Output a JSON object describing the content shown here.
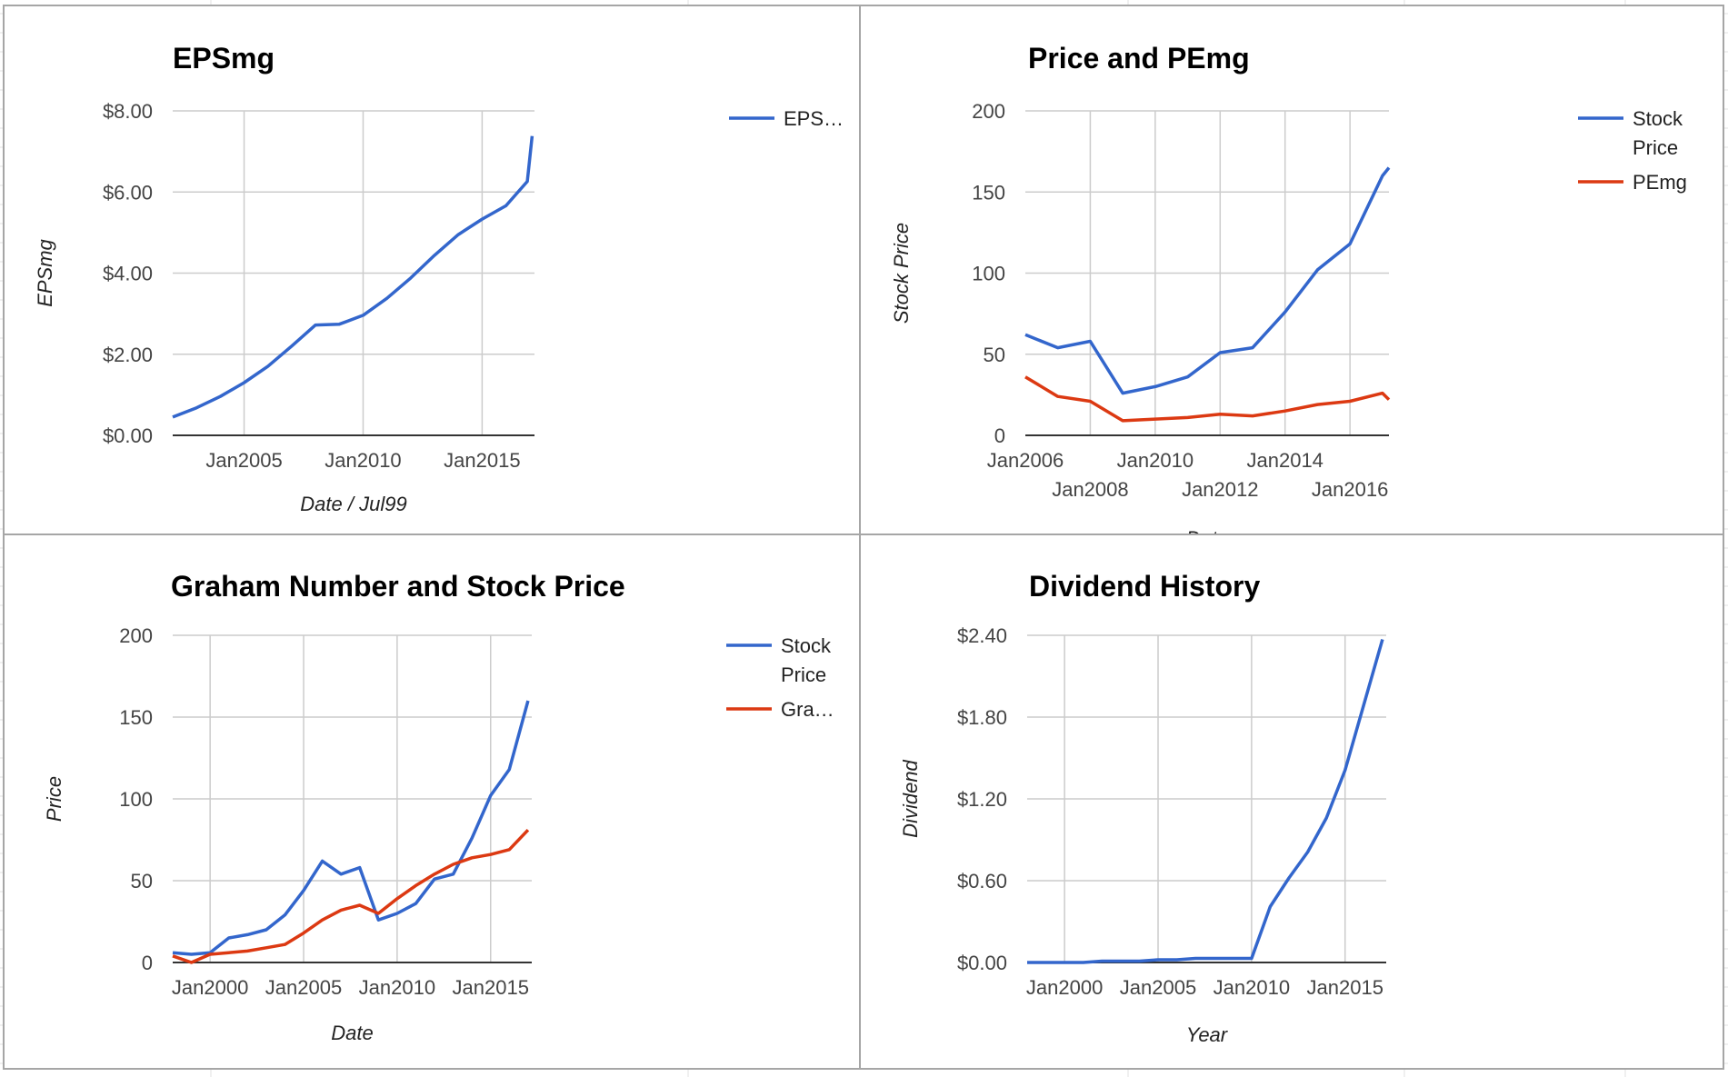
{
  "colors": {
    "blue": "#3366cc",
    "red": "#dc3912",
    "grid": "#cccccc",
    "baseline": "#333333",
    "panel_border": "#a6a6a6",
    "sheet_grid": "#e2e2e2"
  },
  "chart_data": [
    {
      "type": "line",
      "title": "EPSmg",
      "xlabel": "Date / Jul99",
      "ylabel": "EPSmg",
      "xlim": [
        2002.0,
        2017.2
      ],
      "ylim": [
        0,
        8
      ],
      "x_ticks": [
        {
          "v": 2005,
          "label": "Jan2005"
        },
        {
          "v": 2010,
          "label": "Jan2010"
        },
        {
          "v": 2015,
          "label": "Jan2015"
        }
      ],
      "y_ticks": [
        {
          "v": 0,
          "label": "$0.00"
        },
        {
          "v": 2,
          "label": "$2.00"
        },
        {
          "v": 4,
          "label": "$4.00"
        },
        {
          "v": 6,
          "label": "$6.00"
        },
        {
          "v": 8,
          "label": "$8.00"
        }
      ],
      "legend": "right",
      "series": [
        {
          "name": "EPS…",
          "color": "#3366cc",
          "x": [
            2002.0,
            2003.0,
            2004.0,
            2005.0,
            2006.0,
            2007.0,
            2008.0,
            2009.0,
            2010.0,
            2011.0,
            2012.0,
            2013.0,
            2014.0,
            2015.0,
            2016.0,
            2016.9,
            2017.1
          ],
          "values": [
            0.45,
            0.68,
            0.96,
            1.3,
            1.7,
            2.2,
            2.72,
            2.74,
            2.96,
            3.38,
            3.88,
            4.44,
            4.95,
            5.33,
            5.66,
            6.26,
            7.38
          ]
        }
      ]
    },
    {
      "type": "line",
      "title": "Price and PEmg",
      "xlabel": "Date",
      "ylabel": "Stock Price",
      "xlim": [
        2006.0,
        2017.2
      ],
      "ylim": [
        0,
        200
      ],
      "x_ticks": [
        {
          "v": 2006,
          "label": "Jan2006",
          "row": 0
        },
        {
          "v": 2008,
          "label": "Jan2008",
          "row": 1
        },
        {
          "v": 2010,
          "label": "Jan2010",
          "row": 0
        },
        {
          "v": 2012,
          "label": "Jan2012",
          "row": 1
        },
        {
          "v": 2014,
          "label": "Jan2014",
          "row": 0
        },
        {
          "v": 2016,
          "label": "Jan2016",
          "row": 1
        }
      ],
      "y_ticks": [
        {
          "v": 0,
          "label": "0"
        },
        {
          "v": 50,
          "label": "50"
        },
        {
          "v": 100,
          "label": "100"
        },
        {
          "v": 150,
          "label": "150"
        },
        {
          "v": 200,
          "label": "200"
        }
      ],
      "legend": "right",
      "series": [
        {
          "name": "Stock Price",
          "color": "#3366cc",
          "x": [
            2006.0,
            2007.0,
            2008.0,
            2009.0,
            2010.0,
            2011.0,
            2012.0,
            2013.0,
            2014.0,
            2015.0,
            2016.0,
            2017.0,
            2017.2
          ],
          "values": [
            62,
            54,
            58,
            26,
            30,
            36,
            51,
            54,
            76,
            102,
            118,
            160,
            165
          ]
        },
        {
          "name": "PEmg",
          "color": "#dc3912",
          "x": [
            2006.0,
            2007.0,
            2008.0,
            2009.0,
            2010.0,
            2011.0,
            2012.0,
            2013.0,
            2014.0,
            2015.0,
            2016.0,
            2017.0,
            2017.2
          ],
          "values": [
            36,
            24,
            21,
            9,
            10,
            11,
            13,
            12,
            15,
            19,
            21,
            26,
            22
          ]
        }
      ]
    },
    {
      "type": "line",
      "title": "Graham Number and Stock Price",
      "xlabel": "Date",
      "ylabel": "Price",
      "xlim": [
        1998.0,
        2017.2
      ],
      "ylim": [
        0,
        200
      ],
      "x_ticks": [
        {
          "v": 2000,
          "label": "Jan2000"
        },
        {
          "v": 2005,
          "label": "Jan2005"
        },
        {
          "v": 2010,
          "label": "Jan2010"
        },
        {
          "v": 2015,
          "label": "Jan2015"
        }
      ],
      "y_ticks": [
        {
          "v": 0,
          "label": "0"
        },
        {
          "v": 50,
          "label": "50"
        },
        {
          "v": 100,
          "label": "100"
        },
        {
          "v": 150,
          "label": "150"
        },
        {
          "v": 200,
          "label": "200"
        }
      ],
      "legend": "right",
      "series": [
        {
          "name": "Stock Price",
          "color": "#3366cc",
          "x": [
            1998,
            1999,
            2000,
            2001,
            2002,
            2003,
            2004,
            2005,
            2006,
            2007,
            2008,
            2009,
            2010,
            2011,
            2012,
            2013,
            2014,
            2015,
            2016,
            2017
          ],
          "values": [
            6,
            5,
            6,
            15,
            17,
            20,
            29,
            44,
            62,
            54,
            58,
            26,
            30,
            36,
            51,
            54,
            76,
            102,
            118,
            160
          ]
        },
        {
          "name": "Gra…",
          "color": "#dc3912",
          "x": [
            1998,
            1999,
            2000,
            2001,
            2002,
            2003,
            2004,
            2005,
            2006,
            2007,
            2008,
            2009,
            2010,
            2011,
            2012,
            2013,
            2014,
            2015,
            2016,
            2017
          ],
          "values": [
            4,
            0,
            5,
            6,
            7,
            9,
            11,
            18,
            26,
            32,
            35,
            30,
            39,
            47,
            54,
            60,
            64,
            66,
            69,
            81
          ]
        }
      ]
    },
    {
      "type": "line",
      "title": "Dividend History",
      "xlabel": "Year",
      "ylabel": "Dividend",
      "xlim": [
        1998.0,
        2017.2
      ],
      "ylim": [
        0,
        2.4
      ],
      "x_ticks": [
        {
          "v": 2000,
          "label": "Jan2000"
        },
        {
          "v": 2005,
          "label": "Jan2005"
        },
        {
          "v": 2010,
          "label": "Jan2010"
        },
        {
          "v": 2015,
          "label": "Jan2015"
        }
      ],
      "y_ticks": [
        {
          "v": 0,
          "label": "$0.00"
        },
        {
          "v": 0.6,
          "label": "$0.60"
        },
        {
          "v": 1.2,
          "label": "$1.20"
        },
        {
          "v": 1.8,
          "label": "$1.80"
        },
        {
          "v": 2.4,
          "label": "$2.40"
        }
      ],
      "legend": "none",
      "series": [
        {
          "name": "",
          "color": "#3366cc",
          "x": [
            1998,
            1999,
            2000,
            2001,
            2002,
            2003,
            2004,
            2005,
            2006,
            2007,
            2008,
            2009,
            2010,
            2011,
            2012,
            2013,
            2014,
            2015,
            2016,
            2017
          ],
          "values": [
            0,
            0,
            0,
            0,
            0.01,
            0.01,
            0.01,
            0.02,
            0.02,
            0.03,
            0.03,
            0.03,
            0.03,
            0.41,
            0.62,
            0.81,
            1.06,
            1.41,
            1.89,
            2.37
          ]
        }
      ]
    }
  ]
}
